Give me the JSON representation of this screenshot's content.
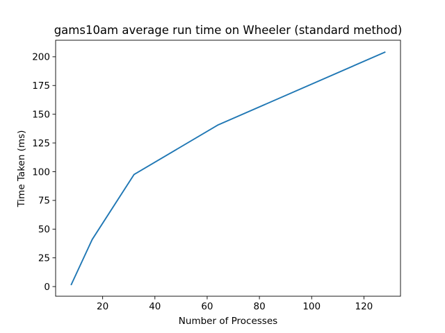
{
  "chart_data": {
    "type": "line",
    "title": "gams10am average run time on Wheeler (standard method)",
    "xlabel": "Number of Processes",
    "ylabel": "Time Taken (ms)",
    "xlim": [
      2,
      134
    ],
    "ylim": [
      -8.4,
      214.4
    ],
    "x_ticks": [
      20,
      40,
      60,
      80,
      100,
      120
    ],
    "y_ticks": [
      0,
      25,
      50,
      75,
      100,
      125,
      150,
      175,
      200
    ],
    "grid": false,
    "legend": "none",
    "series": [
      {
        "color": "#1f77b4",
        "x": [
          8,
          16,
          32,
          64,
          128
        ],
        "y": [
          1.8,
          41,
          97.5,
          140.5,
          204
        ]
      }
    ]
  }
}
